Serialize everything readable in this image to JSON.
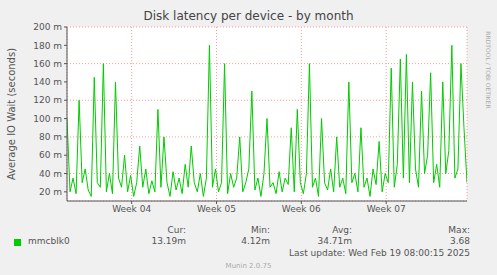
{
  "chart_data": {
    "type": "line",
    "title": "Disk latency per device - by month",
    "y_label": "Average IO Wait (seconds)",
    "x": [
      0,
      6,
      12,
      18,
      24,
      30,
      36,
      42,
      48,
      54,
      60,
      66,
      72,
      78,
      84,
      90,
      96,
      102,
      108,
      114,
      120,
      126,
      132,
      138,
      144,
      150,
      156,
      162,
      168,
      174,
      180,
      186,
      192,
      198,
      204,
      210,
      216,
      222,
      228,
      234,
      240,
      246,
      252,
      258,
      264,
      270,
      276,
      282,
      288,
      294,
      300,
      306,
      312,
      318,
      324,
      330,
      336,
      342,
      348,
      354,
      360,
      366,
      372,
      378,
      384,
      390,
      396,
      402,
      408,
      414,
      420,
      426,
      432,
      438,
      444,
      450,
      456,
      462,
      468,
      474,
      480,
      486,
      492,
      498,
      504,
      510,
      516,
      522,
      528,
      534,
      540,
      546,
      552,
      558,
      564,
      570,
      576,
      582,
      588,
      594,
      600,
      606,
      612,
      618,
      624,
      630,
      636,
      642,
      648,
      654,
      660,
      666,
      672,
      678,
      684,
      690,
      696,
      702,
      708,
      714,
      720,
      726,
      732,
      738,
      744,
      750,
      756,
      762,
      768,
      774,
      780,
      786,
      792
    ],
    "series": [
      {
        "name": "mmcblk0",
        "color": "#00cc00",
        "values": [
          0.1,
          0.02,
          0.035,
          0.018,
          0.12,
          0.03,
          0.045,
          0.022,
          0.015,
          0.145,
          0.03,
          0.025,
          0.16,
          0.02,
          0.04,
          0.018,
          0.14,
          0.035,
          0.025,
          0.06,
          0.02,
          0.038,
          0.015,
          0.03,
          0.07,
          0.025,
          0.045,
          0.018,
          0.032,
          0.02,
          0.11,
          0.025,
          0.08,
          0.03,
          0.015,
          0.042,
          0.022,
          0.035,
          0.018,
          0.05,
          0.025,
          0.07,
          0.03,
          0.02,
          0.04,
          0.015,
          0.035,
          0.18,
          0.025,
          0.045,
          0.02,
          0.03,
          0.16,
          0.018,
          0.04,
          0.025,
          0.035,
          0.08,
          0.02,
          0.03,
          0.045,
          0.13,
          0.022,
          0.035,
          0.015,
          0.04,
          0.1,
          0.025,
          0.03,
          0.018,
          0.042,
          0.02,
          0.035,
          0.028,
          0.09,
          0.02,
          0.11,
          0.03,
          0.018,
          0.04,
          0.16,
          0.025,
          0.035,
          0.015,
          0.1,
          0.03,
          0.022,
          0.045,
          0.02,
          0.08,
          0.025,
          0.035,
          0.018,
          0.14,
          0.03,
          0.04,
          0.02,
          0.09,
          0.025,
          0.035,
          0.015,
          0.045,
          0.028,
          0.075,
          0.02,
          0.04,
          0.03,
          0.155,
          0.025,
          0.05,
          0.165,
          0.035,
          0.17,
          0.03,
          0.14,
          0.045,
          0.025,
          0.13,
          0.04,
          0.06,
          0.15,
          0.03,
          0.05,
          0.025,
          0.14,
          0.04,
          0.065,
          0.18,
          0.035,
          0.045,
          0.16,
          0.09,
          0.03
        ]
      }
    ],
    "xlim": [
      0,
      792
    ],
    "xticks": [
      {
        "value": 128,
        "label": "Week 04"
      },
      {
        "value": 296,
        "label": "Week 05"
      },
      {
        "value": 464,
        "label": "Week 06"
      },
      {
        "value": 632,
        "label": "Week 07"
      }
    ],
    "ylim": [
      0.01,
      0.2
    ],
    "yticks": [
      {
        "value": 0.02,
        "label": "20 m"
      },
      {
        "value": 0.04,
        "label": "40 m"
      },
      {
        "value": 0.06,
        "label": "60 m"
      },
      {
        "value": 0.08,
        "label": "80 m"
      },
      {
        "value": 0.1,
        "label": "100 m"
      },
      {
        "value": 0.12,
        "label": "120 m"
      },
      {
        "value": 0.14,
        "label": "140 m"
      },
      {
        "value": 0.16,
        "label": "160 m"
      },
      {
        "value": 0.18,
        "label": "180 m"
      },
      {
        "value": 0.2,
        "label": "200 m"
      }
    ],
    "grid": true,
    "summary": {
      "headers": [
        "Cur:",
        "Min:",
        "Avg:",
        "Max:"
      ],
      "values": [
        "13.19m",
        "4.12m",
        "34.71m",
        "3.68"
      ]
    },
    "footer": "Last update: Wed Feb 19 08:00:15 2025",
    "credit": "Munin 2.0.75",
    "watermark": "RRDTOOL / TOBI OETIKER"
  }
}
